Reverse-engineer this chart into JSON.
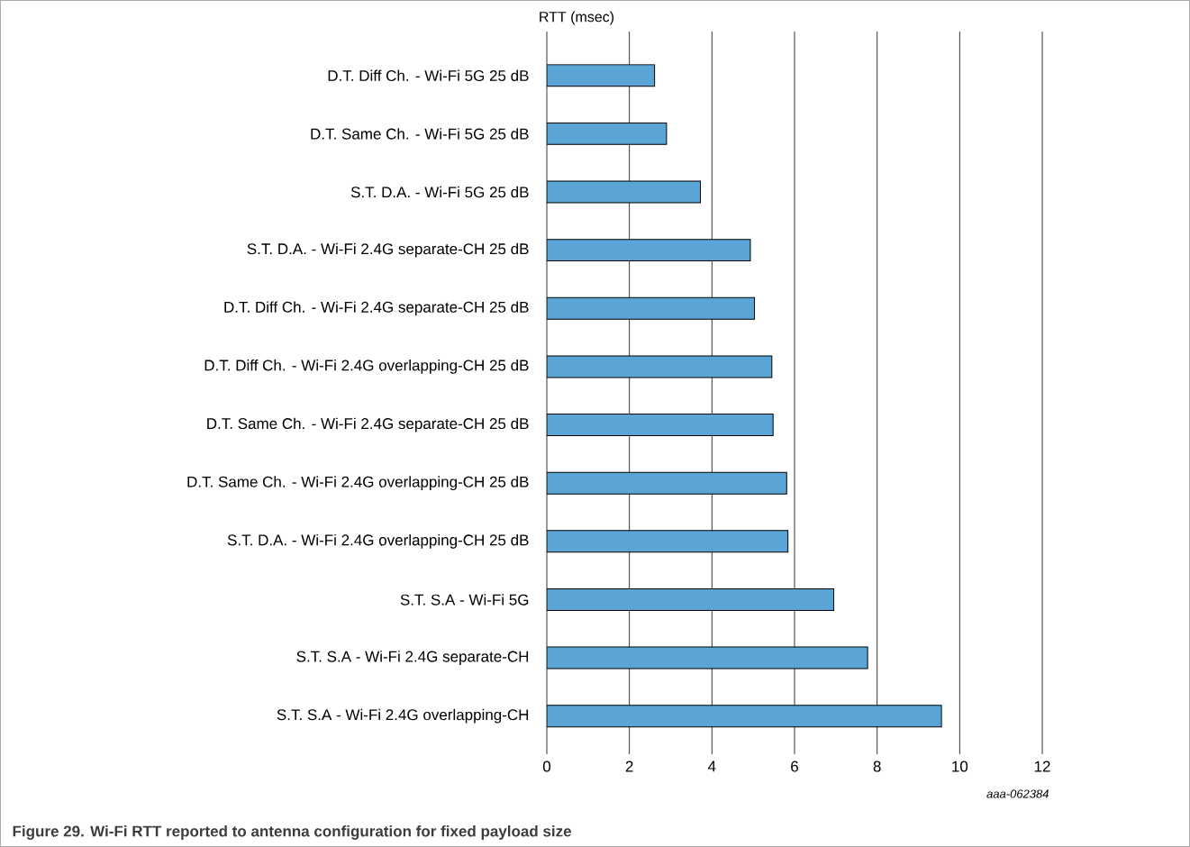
{
  "chart_data": {
    "type": "bar",
    "orientation": "horizontal",
    "title": "Figure 29.  Wi-Fi RTT reported to antenna configuration for fixed payload size",
    "xlabel": "RTT (msec)",
    "annotations": [
      "aaa-062384"
    ],
    "categories": [
      "D.T. Diff Ch. - Wi-Fi 5G 25 dB",
      "D.T. Same Ch. - Wi-Fi 5G 25 dB",
      "S.T. D.A. - Wi-Fi 5G 25 dB",
      "S.T. D.A. - Wi-Fi 2.4G separate-CH 25 dB",
      "D.T. Diff Ch. - Wi-Fi 2.4G separate-CH 25 dB",
      "D.T. Diff Ch. - Wi-Fi 2.4G overlapping-CH 25 dB",
      "D.T. Same Ch. - Wi-Fi 2.4G separate-CH 25 dB",
      "D.T. Same Ch. - Wi-Fi 2.4G overlapping-CH 25 dB",
      "S.T. D.A. - Wi-Fi 2.4G overlapping-CH 25 dB",
      "S.T. S.A - Wi-Fi 5G",
      "S.T. S.A - Wi-Fi 2.4G separate-CH",
      "S.T. S.A - Wi-Fi 2.4G overlapping-CH"
    ],
    "values": [
      2.61,
      2.9,
      3.72,
      4.93,
      5.03,
      5.45,
      5.48,
      5.81,
      5.84,
      6.95,
      7.77,
      9.56
    ],
    "color": "#5aa5d6",
    "xlim": [
      0,
      12
    ],
    "xticks": [
      0,
      2,
      4,
      6,
      8,
      10,
      12
    ],
    "grid": "x"
  }
}
